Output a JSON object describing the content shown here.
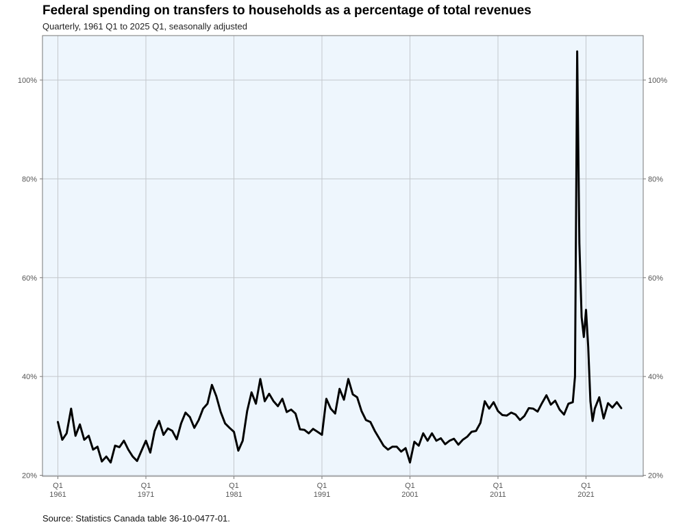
{
  "chart_data": {
    "type": "line",
    "title": "Federal spending on transfers to households as a percentage of total revenues",
    "subtitle": "Quarterly, 1961 Q1 to 2025 Q1, seasonally adjusted",
    "source": "Source: Statistics Canada table 36-10-0477-01.",
    "xlabel": "",
    "ylabel": "",
    "xlim": [
      1959.25,
      2027.5
    ],
    "ylim": [
      19.8,
      109
    ],
    "y_ticks": [
      20,
      40,
      60,
      80,
      100
    ],
    "y_tick_labels": [
      "20%",
      "40%",
      "60%",
      "80%",
      "100%"
    ],
    "x_ticks": [
      1961,
      1971,
      1981,
      1991,
      2001,
      2011,
      2021
    ],
    "x_tick_labels": [
      {
        "quarter": "Q1",
        "year": "1961"
      },
      {
        "quarter": "Q1",
        "year": "1971"
      },
      {
        "quarter": "Q1",
        "year": "1981"
      },
      {
        "quarter": "Q1",
        "year": "1991"
      },
      {
        "quarter": "Q1",
        "year": "2001"
      },
      {
        "quarter": "Q1",
        "year": "2011"
      },
      {
        "quarter": "Q1",
        "year": "2021"
      }
    ],
    "grid": true,
    "colors": {
      "line": "#000000",
      "panel": "#eef6fd",
      "grid": "#c3c7cc",
      "frame": "#777777"
    },
    "series": [
      {
        "name": "Transfers to households as % of total revenues",
        "x": [
          1961,
          1961.5,
          1962,
          1962.5,
          1963,
          1963.5,
          1964,
          1964.5,
          1965,
          1965.5,
          1966,
          1966.5,
          1967,
          1967.5,
          1968,
          1968.5,
          1969,
          1969.5,
          1970,
          1970.5,
          1971,
          1971.5,
          1972,
          1972.5,
          1973,
          1973.5,
          1974,
          1974.5,
          1975,
          1975.5,
          1976,
          1976.5,
          1977,
          1977.5,
          1978,
          1978.5,
          1979,
          1979.5,
          1980,
          1980.5,
          1981,
          1981.5,
          1982,
          1982.5,
          1983,
          1983.5,
          1984,
          1984.5,
          1985,
          1985.5,
          1986,
          1986.5,
          1987,
          1987.5,
          1988,
          1988.5,
          1989,
          1989.5,
          1990,
          1990.5,
          1991,
          1991.5,
          1992,
          1992.5,
          1993,
          1993.5,
          1994,
          1994.5,
          1995,
          1995.5,
          1996,
          1996.5,
          1997,
          1997.5,
          1998,
          1998.5,
          1999,
          1999.5,
          2000,
          2000.5,
          2001,
          2001.5,
          2002,
          2002.5,
          2003,
          2003.5,
          2004,
          2004.5,
          2005,
          2005.5,
          2006,
          2006.5,
          2007,
          2007.5,
          2008,
          2008.5,
          2009,
          2009.5,
          2010,
          2010.5,
          2011,
          2011.5,
          2012,
          2012.5,
          2013,
          2013.5,
          2014,
          2014.5,
          2015,
          2015.5,
          2016,
          2016.5,
          2017,
          2017.5,
          2018,
          2018.5,
          2019,
          2019.5,
          2019.75,
          2020,
          2020.25,
          2020.5,
          2020.75,
          2021,
          2021.25,
          2021.5,
          2021.75,
          2022,
          2022.5,
          2023,
          2023.5,
          2024,
          2024.5,
          2025
        ],
        "values": [
          30.8,
          27.2,
          28.5,
          33.5,
          28.0,
          30.3,
          27.2,
          28.0,
          25.2,
          25.8,
          22.8,
          23.8,
          22.6,
          26.0,
          25.7,
          27.0,
          25.2,
          23.8,
          22.9,
          25.0,
          27.0,
          24.6,
          29.0,
          31.0,
          28.2,
          29.5,
          29.0,
          27.3,
          30.5,
          32.7,
          31.8,
          29.6,
          31.2,
          33.5,
          34.5,
          38.3,
          36.0,
          32.8,
          30.5,
          29.6,
          28.8,
          25.0,
          27.0,
          33.0,
          36.8,
          34.5,
          39.5,
          35.0,
          36.5,
          35.0,
          34.0,
          35.5,
          32.8,
          33.3,
          32.5,
          29.3,
          29.2,
          28.5,
          29.4,
          28.8,
          28.2,
          35.5,
          33.5,
          32.5,
          37.5,
          35.3,
          39.5,
          36.4,
          35.8,
          33.0,
          31.2,
          30.8,
          29.0,
          27.5,
          26.0,
          25.2,
          25.8,
          25.8,
          24.8,
          25.5,
          22.6,
          26.8,
          26.0,
          28.5,
          27.0,
          28.5,
          27.0,
          27.5,
          26.3,
          27.0,
          27.4,
          26.2,
          27.2,
          27.8,
          28.8,
          29.0,
          30.6,
          35.0,
          33.5,
          34.8,
          33.0,
          32.2,
          32.1,
          32.7,
          32.3,
          31.2,
          32.0,
          33.6,
          33.5,
          32.9,
          34.6,
          36.2,
          34.3,
          35.1,
          33.3,
          32.3,
          34.5,
          34.8,
          40.0,
          105.8,
          67.0,
          52.0,
          48.0,
          53.5,
          46.0,
          35.0,
          31.0,
          33.5,
          35.8,
          31.5,
          34.6,
          33.7,
          34.8,
          33.6
        ]
      }
    ]
  }
}
